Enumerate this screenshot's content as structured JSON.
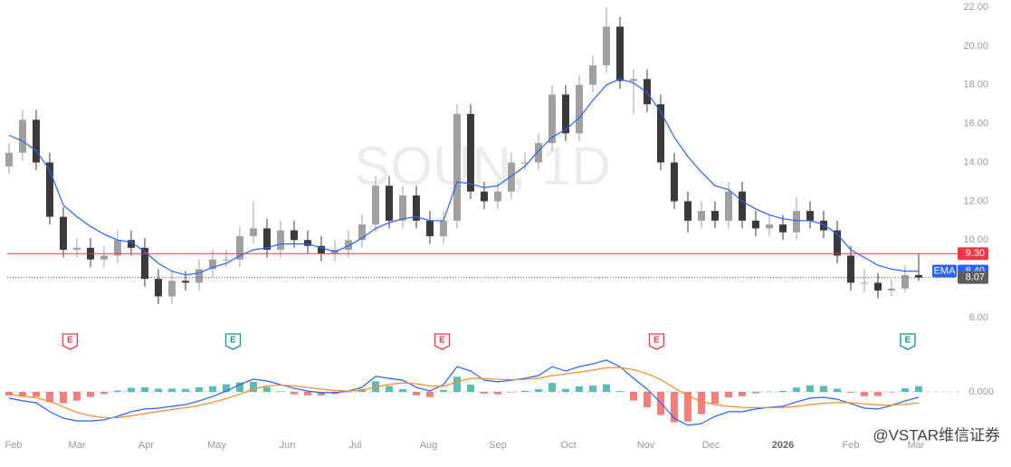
{
  "chart_data": [
    {
      "type": "candlestick",
      "title": "SOUN, 1D",
      "x": [
        0,
        1,
        2,
        3,
        4,
        5,
        6,
        7,
        8,
        9,
        10,
        11,
        12,
        13,
        14,
        15,
        16,
        17,
        18,
        19,
        20,
        21,
        22,
        23,
        24,
        25,
        26,
        27,
        28,
        29,
        30,
        31,
        32,
        33,
        34,
        35,
        36,
        37,
        38,
        39,
        40,
        41,
        42,
        43,
        44,
        45,
        46,
        47,
        48,
        49,
        50,
        51,
        52,
        53,
        54,
        55,
        56,
        57,
        58,
        59,
        60,
        61,
        62,
        63,
        64,
        65,
        66,
        67
      ],
      "open": [
        13.8,
        14.5,
        16.2,
        14.0,
        11.2,
        9.5,
        9.6,
        9.0,
        9.2,
        10.0,
        9.6,
        8.0,
        7.1,
        7.9,
        7.8,
        8.5,
        9.0,
        9.0,
        10.2,
        10.6,
        9.5,
        10.5,
        10.0,
        9.7,
        9.3,
        9.5,
        10.0,
        10.8,
        12.8,
        11.0,
        12.3,
        11.0,
        10.2,
        11.0,
        16.5,
        12.5,
        12.0,
        12.5,
        14.0,
        14.0,
        15.0,
        17.5,
        15.5,
        18.0,
        19.0,
        21.0,
        18.2,
        18.3,
        17.0,
        14.0,
        12.0,
        11.0,
        11.5,
        11.0,
        12.5,
        11.0,
        10.6,
        10.8,
        10.4,
        11.5,
        11.0,
        10.5,
        9.2,
        7.8,
        7.8,
        7.4,
        7.5,
        8.2
      ],
      "high": [
        15.0,
        16.7,
        16.7,
        14.5,
        11.7,
        10.1,
        10.1,
        9.7,
        10.5,
        10.5,
        10.1,
        8.5,
        8.4,
        8.4,
        9.0,
        9.5,
        9.5,
        10.7,
        12.0,
        11.1,
        11.0,
        11.0,
        10.5,
        10.2,
        10.0,
        10.5,
        11.3,
        13.3,
        13.3,
        12.8,
        12.8,
        11.5,
        11.5,
        17.0,
        17.0,
        13.0,
        13.0,
        14.5,
        14.5,
        15.5,
        18.0,
        18.0,
        18.5,
        19.5,
        22.0,
        21.5,
        18.8,
        18.8,
        17.5,
        14.5,
        12.5,
        12.0,
        12.0,
        13.0,
        13.0,
        11.5,
        11.3,
        11.3,
        12.2,
        12.0,
        11.5,
        11.0,
        9.7,
        8.5,
        8.3,
        8.0,
        8.7,
        9.3
      ],
      "low": [
        13.4,
        14.1,
        13.6,
        10.8,
        9.1,
        9.1,
        8.6,
        8.6,
        8.8,
        9.2,
        7.6,
        6.7,
        6.7,
        7.4,
        7.4,
        8.1,
        8.6,
        8.6,
        9.8,
        9.1,
        9.1,
        9.6,
        9.3,
        8.9,
        8.9,
        9.1,
        9.6,
        10.4,
        10.6,
        10.6,
        10.6,
        9.8,
        9.8,
        10.6,
        12.1,
        11.6,
        11.6,
        12.1,
        13.6,
        13.6,
        14.6,
        15.1,
        15.1,
        17.6,
        18.6,
        17.8,
        16.5,
        16.6,
        13.6,
        11.6,
        10.4,
        10.6,
        10.6,
        10.6,
        10.6,
        10.2,
        10.2,
        10.0,
        10.0,
        10.6,
        10.1,
        8.8,
        7.4,
        7.3,
        7.0,
        7.1,
        7.3,
        7.9
      ],
      "close": [
        14.5,
        16.2,
        14.0,
        11.2,
        9.5,
        9.6,
        9.0,
        9.2,
        10.0,
        9.6,
        8.0,
        7.1,
        7.9,
        7.8,
        8.5,
        9.0,
        9.0,
        10.2,
        10.6,
        9.5,
        10.5,
        10.0,
        9.7,
        9.3,
        9.5,
        10.0,
        10.8,
        12.8,
        11.0,
        12.3,
        11.0,
        10.2,
        11.0,
        16.5,
        12.5,
        12.0,
        12.5,
        14.0,
        14.0,
        15.0,
        17.5,
        15.5,
        18.0,
        19.0,
        21.0,
        18.2,
        18.3,
        17.0,
        14.0,
        12.0,
        11.0,
        11.5,
        11.0,
        12.5,
        11.0,
        10.6,
        10.8,
        10.4,
        11.5,
        11.0,
        10.5,
        9.2,
        7.8,
        7.8,
        7.4,
        7.5,
        8.2,
        8.07
      ],
      "up_color": "#a0a0a0",
      "down_color": "#3a3a3a",
      "series": [
        {
          "name": "EMA",
          "color": "#2962ff",
          "values": [
            15.4,
            15.1,
            14.6,
            13.6,
            11.8,
            11.2,
            10.7,
            10.3,
            10.0,
            9.9,
            9.4,
            8.8,
            8.4,
            8.2,
            8.3,
            8.6,
            8.8,
            9.2,
            9.5,
            9.6,
            9.8,
            9.8,
            9.8,
            9.6,
            9.4,
            9.7,
            10.1,
            10.6,
            10.9,
            11.1,
            11.2,
            11.0,
            11.0,
            13.0,
            12.9,
            12.7,
            12.8,
            13.3,
            13.8,
            14.6,
            15.3,
            15.7,
            16.3,
            17.2,
            18.0,
            18.3,
            18.1,
            17.6,
            16.6,
            15.3,
            14.3,
            13.5,
            12.8,
            12.6,
            12.0,
            11.6,
            11.3,
            11.1,
            11.0,
            11.0,
            10.8,
            10.3,
            9.5,
            9.1,
            8.7,
            8.5,
            8.4,
            8.4
          ]
        }
      ],
      "price_lines": [
        {
          "value": 9.3,
          "label": "9.30",
          "color": "#f23645",
          "style": "solid"
        },
        {
          "name": "EMA",
          "value": 8.4,
          "label": "8.40",
          "color": "#2962ff",
          "style": "none"
        },
        {
          "value": 8.07,
          "label": "8.07",
          "color": "#5d5d5d",
          "style": "dotted"
        }
      ],
      "events": [
        {
          "x": 4.5,
          "label": "E",
          "color": "#f23645"
        },
        {
          "x": 16.5,
          "label": "E",
          "color": "#089981"
        },
        {
          "x": 31.9,
          "label": "E",
          "color": "#f23645"
        },
        {
          "x": 47.7,
          "label": "E",
          "color": "#f23645"
        },
        {
          "x": 66.2,
          "label": "E",
          "color": "#089981"
        }
      ],
      "xlim": [
        -0.13,
        68.0
      ],
      "xticks": [
        {
          "value": 0.33,
          "label": "Feb"
        },
        {
          "value": 5,
          "label": "Mar"
        },
        {
          "value": 10.1,
          "label": "Apr"
        },
        {
          "value": 15.3,
          "label": "May"
        },
        {
          "value": 20.5,
          "label": "Jun"
        },
        {
          "value": 25.5,
          "label": "Jul"
        },
        {
          "value": 30.9,
          "label": "Aug"
        },
        {
          "value": 36,
          "label": "Sep"
        },
        {
          "value": 41.2,
          "label": "Oct"
        },
        {
          "value": 46.9,
          "label": "Nov"
        },
        {
          "value": 51.7,
          "label": "Dec"
        },
        {
          "value": 57,
          "label": "2026",
          "bold": true
        },
        {
          "value": 62,
          "label": "Feb"
        },
        {
          "value": 66.8,
          "label": "Mar"
        }
      ],
      "ylim": [
        6,
        22
      ],
      "yticks": [
        {
          "value": 6,
          "label": "6.00"
        },
        {
          "value": 10,
          "label": "10.00"
        },
        {
          "value": 12,
          "label": "12.00"
        },
        {
          "value": 14,
          "label": "14.00"
        },
        {
          "value": 16,
          "label": "16.00"
        },
        {
          "value": 18,
          "label": "18.00"
        },
        {
          "value": 20,
          "label": "20.00"
        },
        {
          "value": 22,
          "label": "22.00"
        }
      ]
    },
    {
      "type": "macd",
      "x": [
        0,
        1,
        2,
        3,
        4,
        5,
        6,
        7,
        8,
        9,
        10,
        11,
        12,
        13,
        14,
        15,
        16,
        17,
        18,
        19,
        20,
        21,
        22,
        23,
        24,
        25,
        26,
        27,
        28,
        29,
        30,
        31,
        32,
        33,
        34,
        35,
        36,
        37,
        38,
        39,
        40,
        41,
        42,
        43,
        44,
        45,
        46,
        47,
        48,
        49,
        50,
        51,
        52,
        53,
        54,
        55,
        56,
        57,
        58,
        59,
        60,
        61,
        62,
        63,
        64,
        65,
        66,
        67
      ],
      "histogram": [
        -0.13,
        -0.18,
        -0.18,
        -0.38,
        -0.42,
        -0.32,
        -0.19,
        -0.08,
        0.05,
        0.15,
        0.17,
        0.12,
        0.12,
        0.11,
        0.17,
        0.21,
        0.28,
        0.35,
        0.37,
        0.18,
        0.02,
        -0.09,
        -0.13,
        -0.13,
        -0.08,
        0.0,
        0.11,
        0.39,
        0.22,
        0.1,
        -0.13,
        -0.19,
        0.07,
        0.56,
        0.27,
        -0.06,
        -0.09,
        -0.02,
        0.04,
        0.1,
        0.33,
        0.11,
        0.2,
        0.23,
        0.28,
        0.03,
        -0.32,
        -0.57,
        -0.85,
        -1.12,
        -1.09,
        -0.82,
        -0.43,
        -0.2,
        -0.16,
        -0.05,
        0.01,
        0.04,
        0.16,
        0.24,
        0.22,
        0.12,
        -0.03,
        -0.16,
        -0.15,
        -0.01,
        0.13,
        0.21
      ],
      "positive_color": "#26a69a",
      "negative_color": "#ef5350",
      "series": [
        {
          "color": "#2962ff",
          "values": [
            -0.23,
            -0.33,
            -0.4,
            -0.73,
            -0.97,
            -1.07,
            -1.07,
            -1.03,
            -0.9,
            -0.73,
            -0.63,
            -0.6,
            -0.53,
            -0.47,
            -0.33,
            -0.17,
            0.03,
            0.27,
            0.47,
            0.4,
            0.27,
            0.13,
            0.03,
            -0.03,
            -0.03,
            0.03,
            0.17,
            0.57,
            0.5,
            0.43,
            0.17,
            0.03,
            0.27,
            0.93,
            0.77,
            0.43,
            0.37,
            0.43,
            0.5,
            0.6,
            0.93,
            0.77,
            0.93,
            1.03,
            1.17,
            0.93,
            0.5,
            0.1,
            -0.4,
            -0.97,
            -1.23,
            -1.17,
            -0.9,
            -0.73,
            -0.73,
            -0.63,
            -0.57,
            -0.53,
            -0.37,
            -0.23,
            -0.2,
            -0.27,
            -0.43,
            -0.6,
            -0.63,
            -0.5,
            -0.33,
            -0.2
          ]
        },
        {
          "color": "#ff8a2a",
          "values": [
            -0.1,
            -0.15,
            -0.22,
            -0.35,
            -0.55,
            -0.75,
            -0.88,
            -0.95,
            -0.95,
            -0.88,
            -0.8,
            -0.72,
            -0.65,
            -0.58,
            -0.5,
            -0.38,
            -0.25,
            -0.08,
            0.1,
            0.22,
            0.25,
            0.22,
            0.16,
            0.1,
            0.05,
            0.03,
            0.06,
            0.18,
            0.28,
            0.33,
            0.3,
            0.22,
            0.2,
            0.37,
            0.5,
            0.49,
            0.46,
            0.45,
            0.46,
            0.5,
            0.6,
            0.66,
            0.73,
            0.8,
            0.89,
            0.9,
            0.82,
            0.67,
            0.45,
            0.15,
            -0.14,
            -0.35,
            -0.47,
            -0.53,
            -0.57,
            -0.58,
            -0.58,
            -0.57,
            -0.53,
            -0.47,
            -0.42,
            -0.39,
            -0.4,
            -0.44,
            -0.48,
            -0.49,
            -0.46,
            -0.41
          ]
        }
      ],
      "xlim": [
        -0.13,
        68.0
      ],
      "ylim": [
        -1.4,
        1.3
      ],
      "yticks": [
        {
          "value": 0,
          "label": "0.000"
        }
      ]
    }
  ],
  "watermark": "@VSTAR维信证券"
}
